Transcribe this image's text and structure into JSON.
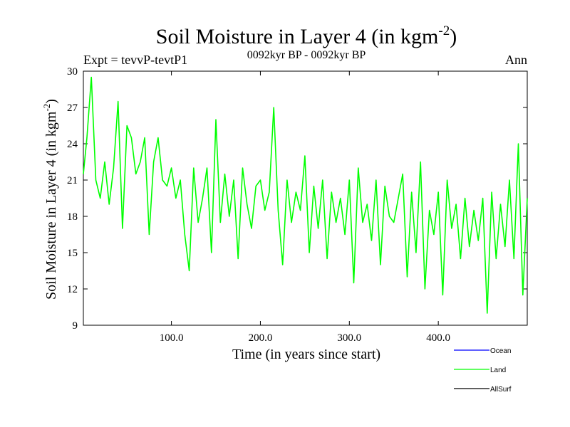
{
  "chart_data": {
    "type": "line",
    "title": "Soil Moisture in Layer 4 (in kgm",
    "title_sup": "-2",
    "title_close": ")",
    "subtitle_left": "Expt = tevvP-tevtP1",
    "subtitle_center": "0092kyr BP - 0092kyr BP",
    "subtitle_right": "Ann",
    "xlabel": "Time (in years since start)",
    "ylabel": "Soil Moisture in Layer 4 (in kgm",
    "ylabel_sup": "-2",
    "ylabel_close": ")",
    "xlim": [
      1,
      500
    ],
    "ylim": [
      9,
      30
    ],
    "x_ticks": [
      100,
      200,
      300,
      400
    ],
    "x_tick_labels": [
      "100.0",
      "200.0",
      "300.0",
      "400.0"
    ],
    "y_ticks": [
      9,
      12,
      15,
      18,
      21,
      24,
      27,
      30
    ],
    "y_tick_labels": [
      "9",
      "12",
      "15",
      "18",
      "21",
      "24",
      "27",
      "30"
    ],
    "legend_position": "bottom-right",
    "series": [
      {
        "name": "Ocean",
        "color": "#0000ff",
        "values": []
      },
      {
        "name": "Land",
        "color": "#00ff00",
        "x": [
          1,
          5,
          10,
          15,
          20,
          25,
          30,
          35,
          40,
          45,
          50,
          55,
          60,
          65,
          70,
          75,
          80,
          85,
          90,
          95,
          100,
          105,
          110,
          115,
          120,
          125,
          130,
          135,
          140,
          145,
          150,
          155,
          160,
          165,
          170,
          175,
          180,
          185,
          190,
          195,
          200,
          205,
          210,
          215,
          220,
          225,
          230,
          235,
          240,
          245,
          250,
          255,
          260,
          265,
          270,
          275,
          280,
          285,
          290,
          295,
          300,
          305,
          310,
          315,
          320,
          325,
          330,
          335,
          340,
          345,
          350,
          355,
          360,
          365,
          370,
          375,
          380,
          385,
          390,
          395,
          400,
          405,
          410,
          415,
          420,
          425,
          430,
          435,
          440,
          445,
          450,
          455,
          460,
          465,
          470,
          475,
          480,
          485,
          490,
          495,
          500
        ],
        "values": [
          21.5,
          24.5,
          29.5,
          21.0,
          19.5,
          22.5,
          19.0,
          22.0,
          27.5,
          17.0,
          25.5,
          24.5,
          21.5,
          22.5,
          24.5,
          16.5,
          22.5,
          24.5,
          21.0,
          20.5,
          22.0,
          19.5,
          21.0,
          16.5,
          13.5,
          22.0,
          17.5,
          19.5,
          22.0,
          15.0,
          26.0,
          17.5,
          21.5,
          18.0,
          21.0,
          14.5,
          22.0,
          19.0,
          17.0,
          20.5,
          21.0,
          18.5,
          20.0,
          27.0,
          18.5,
          14.0,
          21.0,
          17.5,
          20.0,
          18.5,
          23.0,
          15.0,
          20.5,
          17.0,
          21.0,
          14.5,
          20.0,
          17.5,
          19.5,
          16.5,
          21.0,
          12.5,
          22.0,
          17.5,
          19.0,
          16.0,
          21.0,
          14.0,
          20.5,
          18.0,
          17.5,
          19.5,
          21.5,
          13.0,
          20.0,
          15.0,
          22.5,
          12.0,
          18.5,
          16.5,
          20.0,
          11.5,
          21.0,
          17.0,
          19.0,
          14.5,
          19.5,
          15.5,
          18.5,
          16.0,
          19.5,
          10.0,
          20.0,
          14.5,
          19.0,
          15.5,
          21.0,
          14.5,
          24.0,
          11.5,
          19.5
        ]
      },
      {
        "name": "AllSurf",
        "color": "#000000",
        "values": []
      }
    ]
  }
}
